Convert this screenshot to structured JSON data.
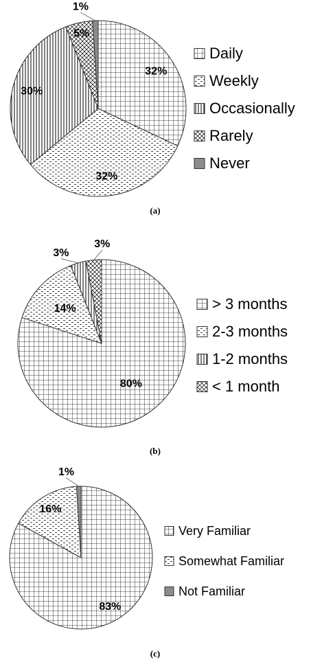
{
  "chart_data": [
    {
      "type": "pie",
      "caption": "(a)",
      "categories": [
        "Daily",
        "Weekly",
        "Occasionally",
        "Rarely",
        "Never"
      ],
      "values": [
        32,
        32,
        30,
        5,
        1
      ],
      "value_labels": [
        "32%",
        "32%",
        "30%",
        "5%",
        "1%"
      ],
      "patterns": [
        "grid",
        "dash",
        "vertical",
        "crosshatch",
        "solid"
      ]
    },
    {
      "type": "pie",
      "caption": "(b)",
      "categories": [
        "> 3 months",
        "2-3 months",
        "1-2 months",
        "< 1 month"
      ],
      "values": [
        80,
        14,
        3,
        3
      ],
      "value_labels": [
        "80%",
        "14%",
        "3%",
        "3%"
      ],
      "patterns": [
        "grid",
        "dash",
        "vertical",
        "crosshatch"
      ]
    },
    {
      "type": "pie",
      "caption": "(c)",
      "categories": [
        "Very Familiar",
        "Somewhat Familiar",
        "Not Familiar"
      ],
      "values": [
        83,
        16,
        1
      ],
      "value_labels": [
        "83%",
        "16%",
        "1%"
      ],
      "patterns": [
        "grid",
        "dash",
        "solid"
      ]
    }
  ]
}
